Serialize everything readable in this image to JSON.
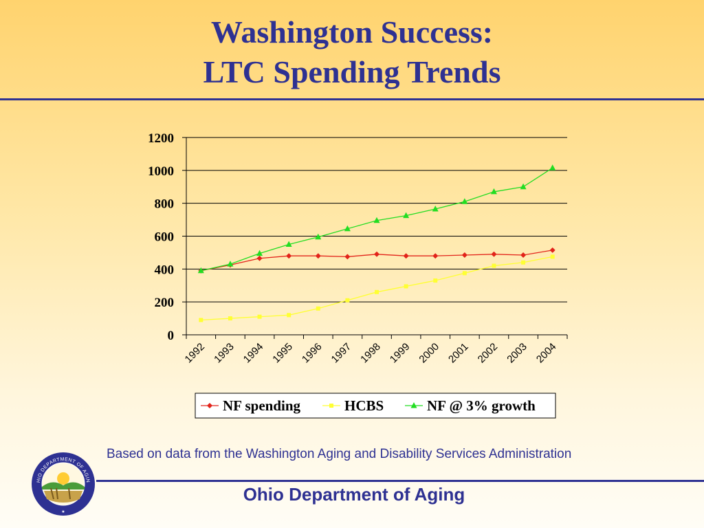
{
  "slide": {
    "title_line1": "Washington Success:",
    "title_line2": "LTC Spending Trends",
    "caption": "Based on data from the Washington Aging and Disability Services Administration",
    "footer": "Ohio Department of Aging",
    "seal_text": "OHIO DEPARTMENT OF AGING",
    "colors": {
      "brand_blue": "#2e3192",
      "background_top": "#ffd36e",
      "background_bottom": "#fffdf6"
    }
  },
  "chart_data": {
    "type": "line",
    "title": "",
    "xlabel": "",
    "ylabel": "",
    "categories": [
      "1992",
      "1993",
      "1994",
      "1995",
      "1996",
      "1997",
      "1998",
      "1999",
      "2000",
      "2001",
      "2002",
      "2003",
      "2004"
    ],
    "ylim": [
      0,
      1200
    ],
    "yticks": [
      0,
      200,
      400,
      600,
      800,
      1000,
      1200
    ],
    "grid": "horizontal",
    "legend_position": "bottom",
    "series": [
      {
        "name": "NF spending",
        "color": "#e2231a",
        "marker": "diamond",
        "values": [
          390,
          425,
          465,
          480,
          480,
          475,
          490,
          480,
          480,
          485,
          490,
          485,
          515
        ]
      },
      {
        "name": "HCBS",
        "color": "#ffff33",
        "marker": "square",
        "values": [
          90,
          100,
          110,
          120,
          160,
          210,
          260,
          295,
          330,
          375,
          420,
          440,
          475
        ]
      },
      {
        "name": "NF @ 3% growth",
        "color": "#22dd22",
        "marker": "triangle",
        "values": [
          390,
          430,
          495,
          550,
          595,
          645,
          695,
          725,
          765,
          810,
          870,
          900,
          1015
        ]
      }
    ]
  }
}
